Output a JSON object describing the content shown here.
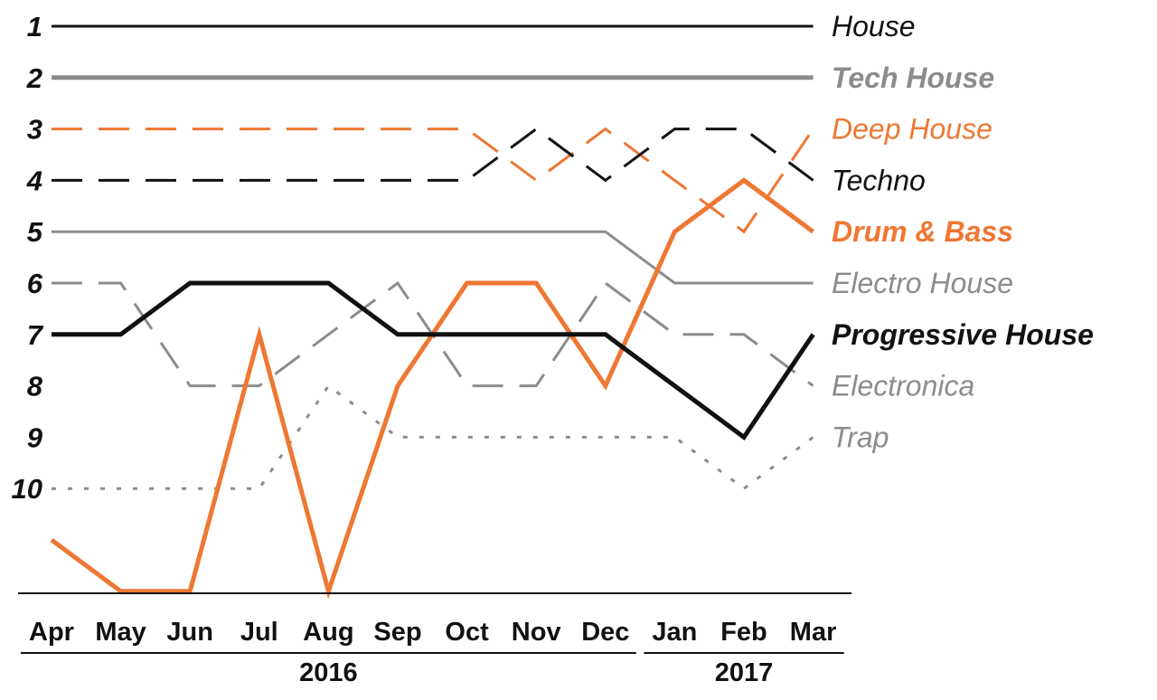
{
  "chart_data": {
    "type": "line",
    "title": "",
    "xlabel": "",
    "ylabel": "",
    "y_inverted": true,
    "ylim": [
      1,
      12
    ],
    "yticks": [
      "1",
      "2",
      "3",
      "4",
      "5",
      "6",
      "7",
      "8",
      "9",
      "10"
    ],
    "categories": [
      "Apr",
      "May",
      "Jun",
      "Jul",
      "Aug",
      "Sep",
      "Oct",
      "Nov",
      "Dec",
      "Jan",
      "Feb",
      "Mar"
    ],
    "year_groups": [
      {
        "label": "2016",
        "start": 0,
        "end": 8
      },
      {
        "label": "2017",
        "start": 9,
        "end": 11
      }
    ],
    "grid": false,
    "legend_placement": "right, at each line's end",
    "series": [
      {
        "name": "House",
        "color": "#111111",
        "style": "solid",
        "bold": false,
        "values": [
          1,
          1,
          1,
          1,
          1,
          1,
          1,
          1,
          1,
          1,
          1,
          1
        ]
      },
      {
        "name": "Tech House",
        "color": "#8c8c8c",
        "style": "solid",
        "bold": true,
        "values": [
          2,
          2,
          2,
          2,
          2,
          2,
          2,
          2,
          2,
          2,
          2,
          2
        ]
      },
      {
        "name": "Deep House",
        "color": "#ee7733",
        "style": "dashed",
        "bold": false,
        "values": [
          3,
          3,
          3,
          3,
          3,
          3,
          3,
          4,
          3,
          4,
          5,
          3
        ]
      },
      {
        "name": "Techno",
        "color": "#111111",
        "style": "dashed",
        "bold": false,
        "values": [
          4,
          4,
          4,
          4,
          4,
          4,
          4,
          3,
          4,
          3,
          3,
          4
        ]
      },
      {
        "name": "Drum & Bass",
        "color": "#ee7733",
        "style": "solid",
        "bold": true,
        "values": [
          11,
          12,
          12,
          7,
          12,
          8,
          6,
          6,
          8,
          5,
          4,
          5
        ]
      },
      {
        "name": "Electro House",
        "color": "#8c8c8c",
        "style": "solid",
        "bold": false,
        "values": [
          5,
          5,
          5,
          5,
          5,
          5,
          5,
          5,
          5,
          6,
          6,
          6
        ]
      },
      {
        "name": "Progressive House",
        "color": "#111111",
        "style": "solid",
        "bold": true,
        "values": [
          7,
          7,
          6,
          6,
          6,
          7,
          7,
          7,
          7,
          8,
          9,
          7
        ]
      },
      {
        "name": "Electronica",
        "color": "#8c8c8c",
        "style": "dashed",
        "bold": false,
        "values": [
          6,
          6,
          8,
          8,
          7,
          6,
          8,
          8,
          6,
          7,
          7,
          8
        ]
      },
      {
        "name": "Trap",
        "color": "#8c8c8c",
        "style": "dotted",
        "bold": false,
        "values": [
          10,
          10,
          10,
          10,
          8,
          9,
          9,
          9,
          9,
          9,
          10,
          9
        ]
      }
    ]
  }
}
